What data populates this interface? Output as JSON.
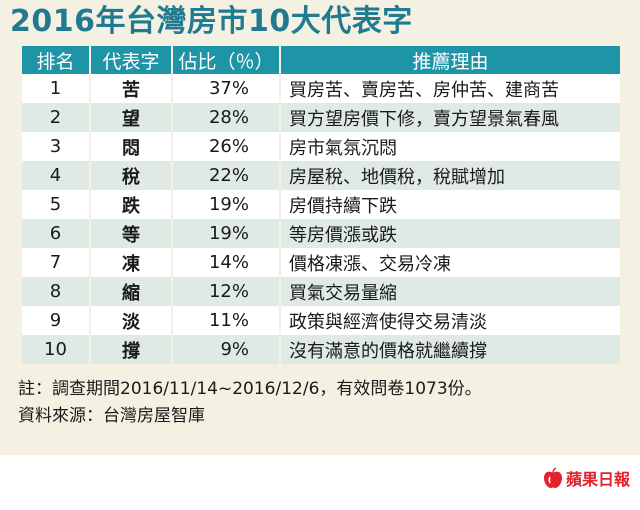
{
  "title": "2016年台灣房市10大代表字",
  "table": {
    "headers": [
      "排名",
      "代表字",
      "佔比（％）",
      "推薦理由"
    ],
    "rows": [
      {
        "rank": "1",
        "char": "苦",
        "pct": "37%",
        "reason": "買房苦、賣房苦、房仲苦、建商苦"
      },
      {
        "rank": "2",
        "char": "望",
        "pct": "28%",
        "reason": "買方望房價下修，賣方望景氣春風"
      },
      {
        "rank": "3",
        "char": "悶",
        "pct": "26%",
        "reason": "房市氣氛沉悶"
      },
      {
        "rank": "4",
        "char": "稅",
        "pct": "22%",
        "reason": "房屋稅、地價稅，稅賦增加"
      },
      {
        "rank": "5",
        "char": "跌",
        "pct": "19%",
        "reason": "房價持續下跌"
      },
      {
        "rank": "6",
        "char": "等",
        "pct": "19%",
        "reason": "等房價漲或跌"
      },
      {
        "rank": "7",
        "char": "凍",
        "pct": "14%",
        "reason": "價格凍漲、交易冷凍"
      },
      {
        "rank": "8",
        "char": "縮",
        "pct": "12%",
        "reason": "買氣交易量縮"
      },
      {
        "rank": "9",
        "char": "淡",
        "pct": "11%",
        "reason": "政策與經濟使得交易清淡"
      },
      {
        "rank": "10",
        "char": "撐",
        "pct": "9%",
        "reason": "沒有滿意的價格就繼續撐"
      }
    ]
  },
  "footnotes": {
    "note": "註：調查期間2016/11/14~2016/12/6，有效問卷1073份。",
    "source": "資料來源：台灣房屋智庫"
  },
  "logo": {
    "text": "蘋果日報",
    "icon": "apple-icon",
    "color": "#e2232b"
  },
  "colors": {
    "accent": "#1d95a7",
    "title": "#1f7a92",
    "background": "#f4f1e2",
    "row_alt": "#dfeae4"
  }
}
